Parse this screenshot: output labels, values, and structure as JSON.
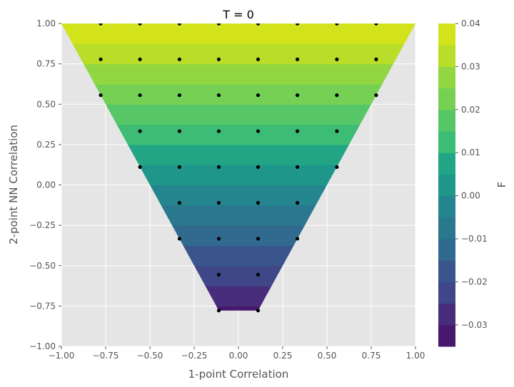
{
  "chart_data": {
    "type": "contourf",
    "title": "T = 0",
    "xlabel": "1-point Correlation",
    "ylabel": "2-point NN Correlation",
    "xlim": [
      -1.0,
      1.0
    ],
    "ylim": [
      -1.0,
      1.0
    ],
    "x_ticks": [
      "−1.00",
      "−0.75",
      "−0.50",
      "−0.25",
      "0.00",
      "0.25",
      "0.50",
      "0.75",
      "1.00"
    ],
    "y_ticks": [
      "−1.00",
      "−0.75",
      "−0.50",
      "−0.25",
      "0.00",
      "0.25",
      "0.50",
      "0.75",
      "1.00"
    ],
    "grid": true,
    "region": {
      "description": "feasible region bounded by y >= 2|x| - 1 and y >= -0.778",
      "vertices": [
        [
          -1.0,
          1.0
        ],
        [
          1.0,
          1.0
        ],
        [
          0.111,
          -0.778
        ],
        [
          -0.111,
          -0.778
        ]
      ]
    },
    "levels": [
      -0.035,
      -0.03,
      -0.025,
      -0.02,
      -0.015,
      -0.01,
      -0.005,
      0.0,
      0.005,
      0.01,
      0.015,
      0.02,
      0.025,
      0.03,
      0.035,
      0.04
    ],
    "level_colors": [
      "#440154",
      "#46186e",
      "#472d7b",
      "#3f4788",
      "#39558c",
      "#306a8e",
      "#2a788e",
      "#25858e",
      "#1e978a",
      "#21a585",
      "#3cbc74",
      "#56c667",
      "#75d054",
      "#92d742",
      "#b8de29",
      "#d2e21b",
      "#e8e419"
    ],
    "field": "F = 0.04 * y (approximately linear in 2-point NN correlation)",
    "field_slope": 0.04,
    "colorbar": {
      "label": "F",
      "range": [
        -0.035,
        0.04
      ],
      "ticks": [
        "−0.03",
        "−0.02",
        "−0.01",
        "0.00",
        "0.01",
        "0.02",
        "0.03",
        "0.04"
      ],
      "tick_values": [
        -0.03,
        -0.02,
        -0.01,
        0.0,
        0.01,
        0.02,
        0.03,
        0.04
      ]
    },
    "points": {
      "name": "",
      "color": "#000000",
      "rows": [
        {
          "y": 1.0,
          "x": [
            -0.778,
            -0.556,
            -0.333,
            -0.111,
            0.111,
            0.333,
            0.556,
            0.778
          ]
        },
        {
          "y": 0.778,
          "x": [
            -0.778,
            -0.556,
            -0.333,
            -0.111,
            0.111,
            0.333,
            0.556,
            0.778
          ]
        },
        {
          "y": 0.556,
          "x": [
            -0.778,
            -0.556,
            -0.333,
            -0.111,
            0.111,
            0.333,
            0.556,
            0.778
          ]
        },
        {
          "y": 0.333,
          "x": [
            -0.556,
            -0.333,
            -0.111,
            0.111,
            0.333,
            0.556
          ]
        },
        {
          "y": 0.111,
          "x": [
            -0.556,
            -0.333,
            -0.111,
            0.111,
            0.333,
            0.556
          ]
        },
        {
          "y": -0.111,
          "x": [
            -0.333,
            -0.111,
            0.111,
            0.333
          ]
        },
        {
          "y": -0.333,
          "x": [
            -0.333,
            -0.111,
            0.111,
            0.333
          ]
        },
        {
          "y": -0.556,
          "x": [
            -0.111,
            0.111
          ]
        },
        {
          "y": -0.778,
          "x": [
            -0.111,
            0.111
          ]
        }
      ]
    },
    "colors": {
      "axes_background": "#e5e5e5",
      "grid": "#ffffff",
      "text": "#555555",
      "title": "#000000"
    }
  }
}
